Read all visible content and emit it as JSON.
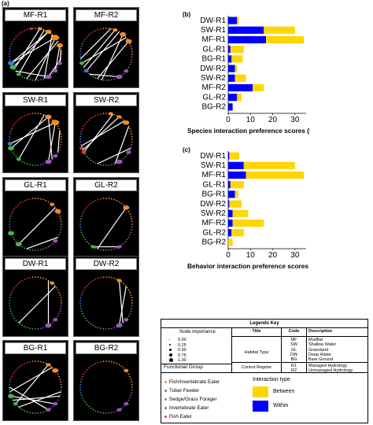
{
  "panels": {
    "a": "(a)",
    "b": "(b)",
    "c": "(c)"
  },
  "networks": [
    {
      "label": "MF-R1"
    },
    {
      "label": "MF-R2"
    },
    {
      "label": "SW-R1"
    },
    {
      "label": "SW-R2"
    },
    {
      "label": "GL-R1"
    },
    {
      "label": "GL-R2"
    },
    {
      "label": "DW-R1"
    },
    {
      "label": "DW-R2"
    },
    {
      "label": "BG-R1"
    },
    {
      "label": "BG-R2"
    }
  ],
  "chart_data": [
    {
      "type": "bar",
      "orientation": "horizontal",
      "stacked": true,
      "categories": [
        "DW-R1",
        "SW-R1",
        "MF-R1",
        "GL-R1",
        "BG-R1",
        "DW-R2",
        "SW-R2",
        "MF-R2",
        "GL-R2",
        "BG-R2"
      ],
      "series": [
        {
          "name": "Within",
          "color": "#0000ff",
          "values": [
            4,
            16,
            17,
            1,
            1.5,
            3,
            3,
            11,
            4,
            2
          ]
        },
        {
          "name": "Between",
          "color": "#ffd700",
          "values": [
            0.8,
            14,
            17,
            6,
            5,
            1,
            5,
            5,
            2,
            0
          ]
        }
      ],
      "xlabel": "Species interaction preference scores (SIPS)",
      "xticks": [
        "0",
        "10",
        "20",
        "30"
      ],
      "xlim": [
        0,
        35
      ]
    },
    {
      "type": "bar",
      "orientation": "horizontal",
      "stacked": true,
      "categories": [
        "DW-R1",
        "SW-R1",
        "MF-R1",
        "GL-R1",
        "BG-R1",
        "DW-R2",
        "SW-R2",
        "MF-R2",
        "GL-R2",
        "BG-R2"
      ],
      "series": [
        {
          "name": "Within",
          "color": "#0000ff",
          "values": [
            0.5,
            7,
            8,
            1,
            3,
            0.5,
            2,
            2,
            1.5,
            0
          ]
        },
        {
          "name": "Between",
          "color": "#ffd700",
          "values": [
            4.5,
            23,
            26,
            6,
            1.5,
            5.5,
            7,
            14,
            5.5,
            2
          ]
        }
      ],
      "xlabel": "Behavior interaction preference scores (BIPS)",
      "xticks": [
        "0",
        "10",
        "20",
        "30"
      ],
      "xlim": [
        0,
        35
      ]
    }
  ],
  "legend": {
    "title": "Legends Key",
    "node_importance": "Node importance",
    "sizes": [
      "0.00",
      "0.25",
      "0.50",
      "0.75",
      "1.00"
    ],
    "col_title": "Title",
    "col_code": "Code",
    "col_desc": "Description",
    "habitat_type": "Habitat Type",
    "habitat_codes": [
      {
        "code": "MF",
        "desc": "Mudflat"
      },
      {
        "code": "SW",
        "desc": "Shallow Water"
      },
      {
        "code": "GL",
        "desc": "Grassland"
      },
      {
        "code": "DW",
        "desc": "Deep Water"
      },
      {
        "code": "BG",
        "desc": "Bare Ground"
      }
    ],
    "functional_group": "Functional Group",
    "control_regime": "Control Regime",
    "regime_codes": [
      {
        "code": "R1",
        "desc": "Managed Hydrology"
      },
      {
        "code": "R2",
        "desc": "Unmanaged Hydrology"
      }
    ],
    "groups": [
      {
        "label": "Fish/Invertebrate Eater",
        "color": "#f28c28"
      },
      {
        "label": "Tuber Feeder",
        "color": "#9b59b6"
      },
      {
        "label": "Sedge/Grass Forager",
        "color": "#4caf50"
      },
      {
        "label": "Invertebrate Eater",
        "color": "#3a7bd5"
      },
      {
        "label": "Fish Eater",
        "color": "#e53935"
      }
    ],
    "interaction_type": "Interaction type",
    "between": "Between",
    "within": "Within",
    "between_color": "#ffd700",
    "within_color": "#0000ff"
  }
}
